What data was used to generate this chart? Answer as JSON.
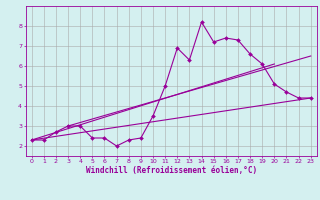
{
  "xlabel": "Windchill (Refroidissement éolien,°C)",
  "bg_color": "#d4f0f0",
  "line_color": "#990099",
  "grid_color": "#aaaaaa",
  "xlim": [
    -0.5,
    23.5
  ],
  "ylim": [
    1.5,
    9.0
  ],
  "xticks": [
    0,
    1,
    2,
    3,
    4,
    5,
    6,
    7,
    8,
    9,
    10,
    11,
    12,
    13,
    14,
    15,
    16,
    17,
    18,
    19,
    20,
    21,
    22,
    23
  ],
  "yticks": [
    2,
    3,
    4,
    5,
    6,
    7,
    8
  ],
  "jagged_x": [
    0,
    1,
    2,
    3,
    4,
    5,
    6,
    7,
    8,
    9,
    10,
    11,
    12,
    13,
    14,
    15,
    16,
    17,
    18,
    19,
    20,
    21,
    22,
    23
  ],
  "jagged_y": [
    2.3,
    2.3,
    2.7,
    3.0,
    3.0,
    2.4,
    2.4,
    2.0,
    2.3,
    2.4,
    3.5,
    5.0,
    6.9,
    6.3,
    8.2,
    7.2,
    7.4,
    7.3,
    6.6,
    6.1,
    5.1,
    4.7,
    4.4,
    4.4
  ],
  "line1_x": [
    0,
    23
  ],
  "line1_y": [
    2.3,
    4.4
  ],
  "line2_x": [
    3,
    23
  ],
  "line2_y": [
    3.0,
    6.5
  ],
  "line3_x": [
    0,
    20
  ],
  "line3_y": [
    2.3,
    6.1
  ]
}
